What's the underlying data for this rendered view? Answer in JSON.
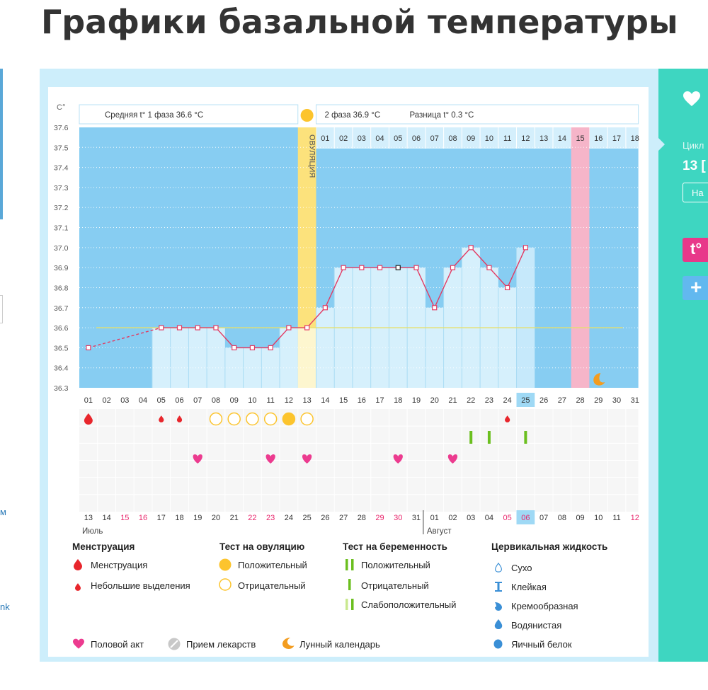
{
  "page_title": "Графики базальной температуры",
  "left": {
    "link1": "м",
    "link2": "nk"
  },
  "side": {
    "heart": "heart-icon",
    "cycle_label": "Цикл",
    "cycle_value": "13 [",
    "button": "На",
    "t_button": "t°",
    "plus_button": "+"
  },
  "header": {
    "phase1": "Средняя t° 1 фаза 36.6 °C",
    "phase2": "2 фаза 36.9 °C",
    "diff": "Разница t° 0.3 °C",
    "ovulation": "ОВУЛЯЦИЯ",
    "unit": "C°"
  },
  "chart_data": {
    "type": "line",
    "ylim": [
      36.3,
      37.6
    ],
    "y_ticks": [
      "37.6",
      "37.5",
      "37.4",
      "37.3",
      "37.2",
      "37.1",
      "37.0",
      "36.9",
      "36.8",
      "36.7",
      "36.6",
      "36.5",
      "36.4",
      "36.3"
    ],
    "cycle_days": [
      "01",
      "02",
      "03",
      "04",
      "05",
      "06",
      "07",
      "08",
      "09",
      "10",
      "11",
      "12",
      "13",
      "14",
      "15",
      "16",
      "17",
      "18",
      "19",
      "20",
      "21",
      "22",
      "23",
      "24",
      "25",
      "26",
      "27",
      "28",
      "29",
      "30",
      "31"
    ],
    "phase2_days": [
      "01",
      "02",
      "03",
      "04",
      "05",
      "06",
      "07",
      "08",
      "09",
      "10",
      "11",
      "12",
      "13",
      "14",
      "15",
      "16",
      "17",
      "18"
    ],
    "dates": [
      "13",
      "14",
      "15",
      "16",
      "17",
      "18",
      "19",
      "20",
      "21",
      "22",
      "23",
      "24",
      "25",
      "26",
      "27",
      "28",
      "29",
      "30",
      "31",
      "01",
      "02",
      "03",
      "04",
      "05",
      "06",
      "07",
      "08",
      "09",
      "10",
      "11",
      "12"
    ],
    "weekend_dates": [
      2,
      3,
      9,
      10,
      16,
      17,
      23,
      24,
      30
    ],
    "month1": "Июль",
    "month2": "Август",
    "today_index": 24,
    "ovulation_index": 12,
    "pink_index": 27,
    "cover_line": 36.6,
    "temperatures": [
      36.5,
      null,
      null,
      null,
      36.6,
      36.6,
      36.6,
      36.6,
      36.5,
      36.5,
      36.5,
      36.6,
      36.6,
      36.7,
      36.9,
      36.9,
      36.9,
      36.9,
      36.9,
      36.7,
      36.9,
      37.0,
      36.9,
      36.8,
      37.0,
      null,
      null,
      null,
      null,
      null,
      null
    ],
    "marked_point_index": 17,
    "dashed_segment": [
      0,
      4
    ],
    "menstruation": [
      0
    ],
    "spotting": [
      4,
      5,
      23
    ],
    "ovulation_negative": [
      7,
      8,
      9,
      10,
      11,
      12
    ],
    "ovulation_positive": [
      11
    ],
    "pregnancy_negative": [
      21,
      22,
      24
    ],
    "intercourse": [
      6,
      10,
      12,
      17,
      20
    ],
    "moon_index": 28
  },
  "legend": {
    "menstruation_head": "Менструация",
    "menstruation": "Менструация",
    "spotting": "Небольшие выделения",
    "ovulation_head": "Тест на овуляцию",
    "ov_positive": "Положительный",
    "ov_negative": "Отрицательный",
    "pregnancy_head": "Тест на беременность",
    "pr_positive": "Положительный",
    "pr_negative": "Отрицательный",
    "pr_weak": "Слабоположительный",
    "cervical_head": "Цервикальная жидкость",
    "cv_dry": "Сухо",
    "cv_sticky": "Клейкая",
    "cv_creamy": "Кремообразная",
    "cv_watery": "Водянистая",
    "cv_eggwhite": "Яичный белок",
    "intercourse": "Половой акт",
    "medication": "Прием лекарств",
    "lunar": "Лунный календарь"
  },
  "colors": {
    "plot_bg": "#87cdf2",
    "column": "#d6f0fc",
    "line": "#e33a62",
    "ovulation": "#fce27c",
    "pink": "#f6b5c9",
    "today": "#9fd9f5",
    "teal": "#3ed6c1",
    "weekend": "#e8256b"
  }
}
